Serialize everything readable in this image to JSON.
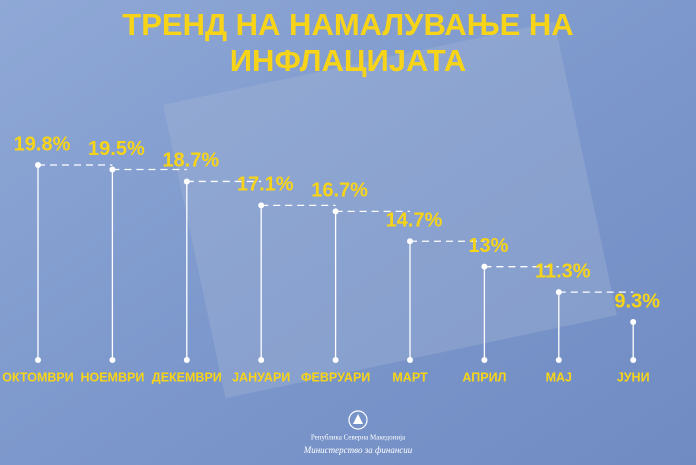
{
  "chart_data": {
    "type": "step",
    "title": [
      "ТРЕНД НА НАМАЛУВАЊЕ НА",
      "ИНФЛАЦИЈАТА"
    ],
    "categories": [
      "ОКТОМВРИ",
      "НОЕМВРИ",
      "ДЕКЕМВРИ",
      "ЈАНУАРИ",
      "ФЕВРУАРИ",
      "МАРТ",
      "АПРИЛ",
      "МАЈ",
      "ЈУНИ"
    ],
    "values": [
      19.8,
      19.5,
      18.7,
      17.1,
      16.7,
      14.7,
      13,
      11.3,
      9.3
    ],
    "value_labels": [
      "19.8%",
      "19.5%",
      "18.7%",
      "17.1%",
      "16.7%",
      "14.7%",
      "13%",
      "11.3%",
      "9.3%"
    ],
    "color": "#f7d418",
    "footer": [
      "Република Северна Македонија",
      "Министерство за финансии"
    ]
  }
}
